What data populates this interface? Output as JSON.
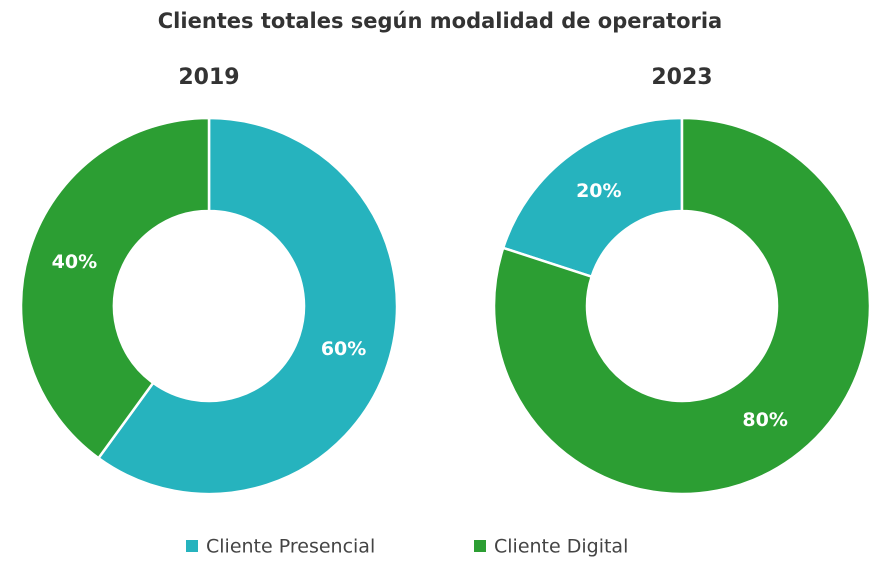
{
  "title": "Clientes totales según modalidad de operatoria",
  "chart_data": [
    {
      "type": "donut",
      "title": "2019",
      "categories": [
        "Cliente Presencial",
        "Cliente Digital"
      ],
      "values": [
        60,
        40
      ],
      "value_labels": [
        "60%",
        "40%"
      ],
      "colors": [
        "#26b3be",
        "#2c9e33"
      ],
      "start_angle": 0
    },
    {
      "type": "donut",
      "title": "2023",
      "categories": [
        "Cliente Presencial",
        "Cliente Digital"
      ],
      "values": [
        20,
        80
      ],
      "value_labels": [
        "20%",
        "80%"
      ],
      "colors": [
        "#26b3be",
        "#2c9e33"
      ],
      "start_angle": 288
    }
  ]
}
